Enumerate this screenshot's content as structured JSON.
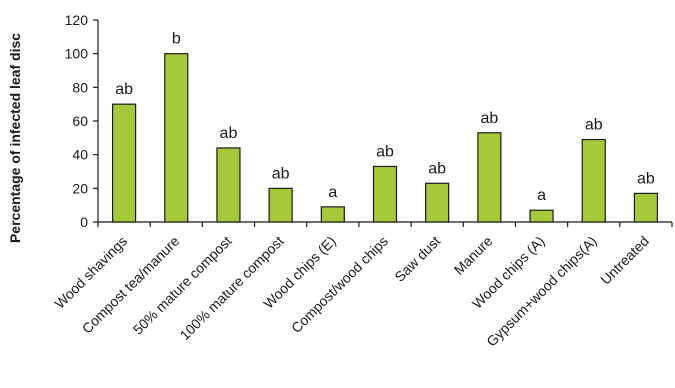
{
  "chart_data": {
    "type": "bar",
    "categories": [
      "Wood shavings",
      "Compost tea/manure",
      "50% mature compost",
      "100% mature compost",
      "Wood chips (E)",
      "Compost/wood chips",
      "Saw dust",
      "Manure",
      "Wood chips (A)",
      "Gypsum+wood chips(A)",
      "Untreated"
    ],
    "values": [
      70,
      100,
      44,
      20,
      9,
      33,
      23,
      53,
      7,
      49,
      17
    ],
    "bar_labels": [
      "ab",
      "b",
      "ab",
      "ab",
      "a",
      "ab",
      "ab",
      "ab",
      "a",
      "ab",
      "ab"
    ],
    "ylabel": "Percentage of infected leaf disc",
    "xlabel": "",
    "ylim": [
      0,
      120
    ],
    "yticks": [
      0,
      20,
      40,
      60,
      80,
      100,
      120
    ],
    "bar_color": "#a6c93a",
    "bar_edge_color": "#1a1a1a",
    "grid": false,
    "legend": "none"
  }
}
